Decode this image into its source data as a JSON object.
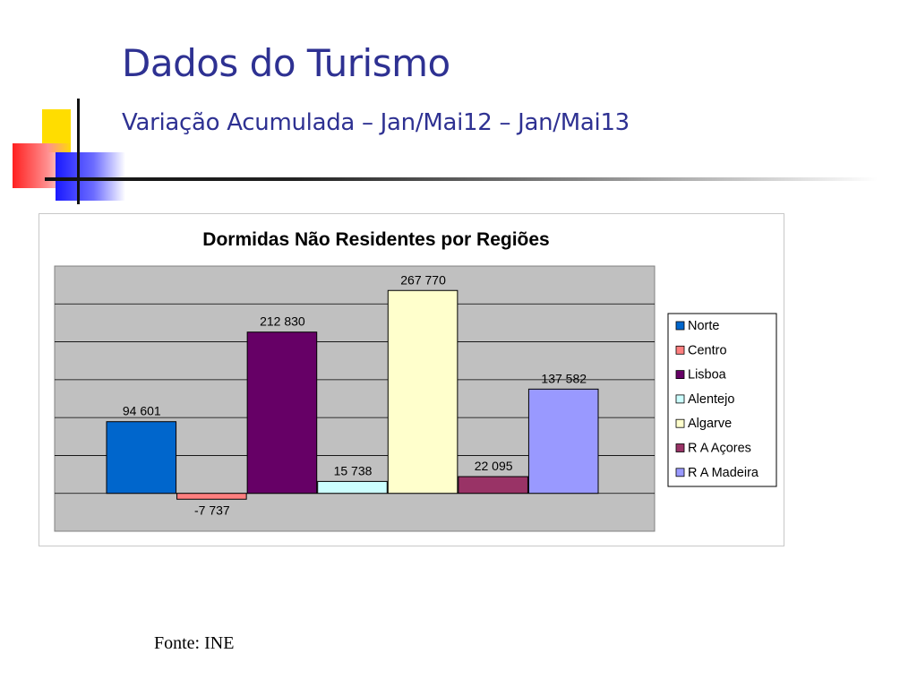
{
  "slide": {
    "title": "Dados do Turismo",
    "subtitle": "Variação Acumulada – Jan/Mai12 – Jan/Mai13",
    "source": "Fonte: INE"
  },
  "chart_data": {
    "type": "bar",
    "title": "Dormidas Não Residentes por Regiões",
    "xlabel": "",
    "ylabel": "",
    "ylim": [
      -50000,
      300000
    ],
    "grid": true,
    "legend_position": "right",
    "plot_background": "#c0c0c0",
    "series": [
      {
        "name": "Norte",
        "value": 94601,
        "label": "94 601",
        "color": "#0066cc"
      },
      {
        "name": "Centro",
        "value": -7737,
        "label": "-7 737",
        "color": "#ff7f7f"
      },
      {
        "name": "Lisboa",
        "value": 212830,
        "label": "212 830",
        "color": "#660066"
      },
      {
        "name": "Alentejo",
        "value": 15738,
        "label": "15 738",
        "color": "#ccffff"
      },
      {
        "name": "Algarve",
        "value": 267770,
        "label": "267 770",
        "color": "#ffffcc"
      },
      {
        "name": "R A Açores",
        "value": 22095,
        "label": "22 095",
        "color": "#993366"
      },
      {
        "name": "R A Madeira",
        "value": 137582,
        "label": "137 582",
        "color": "#9999ff"
      }
    ]
  }
}
